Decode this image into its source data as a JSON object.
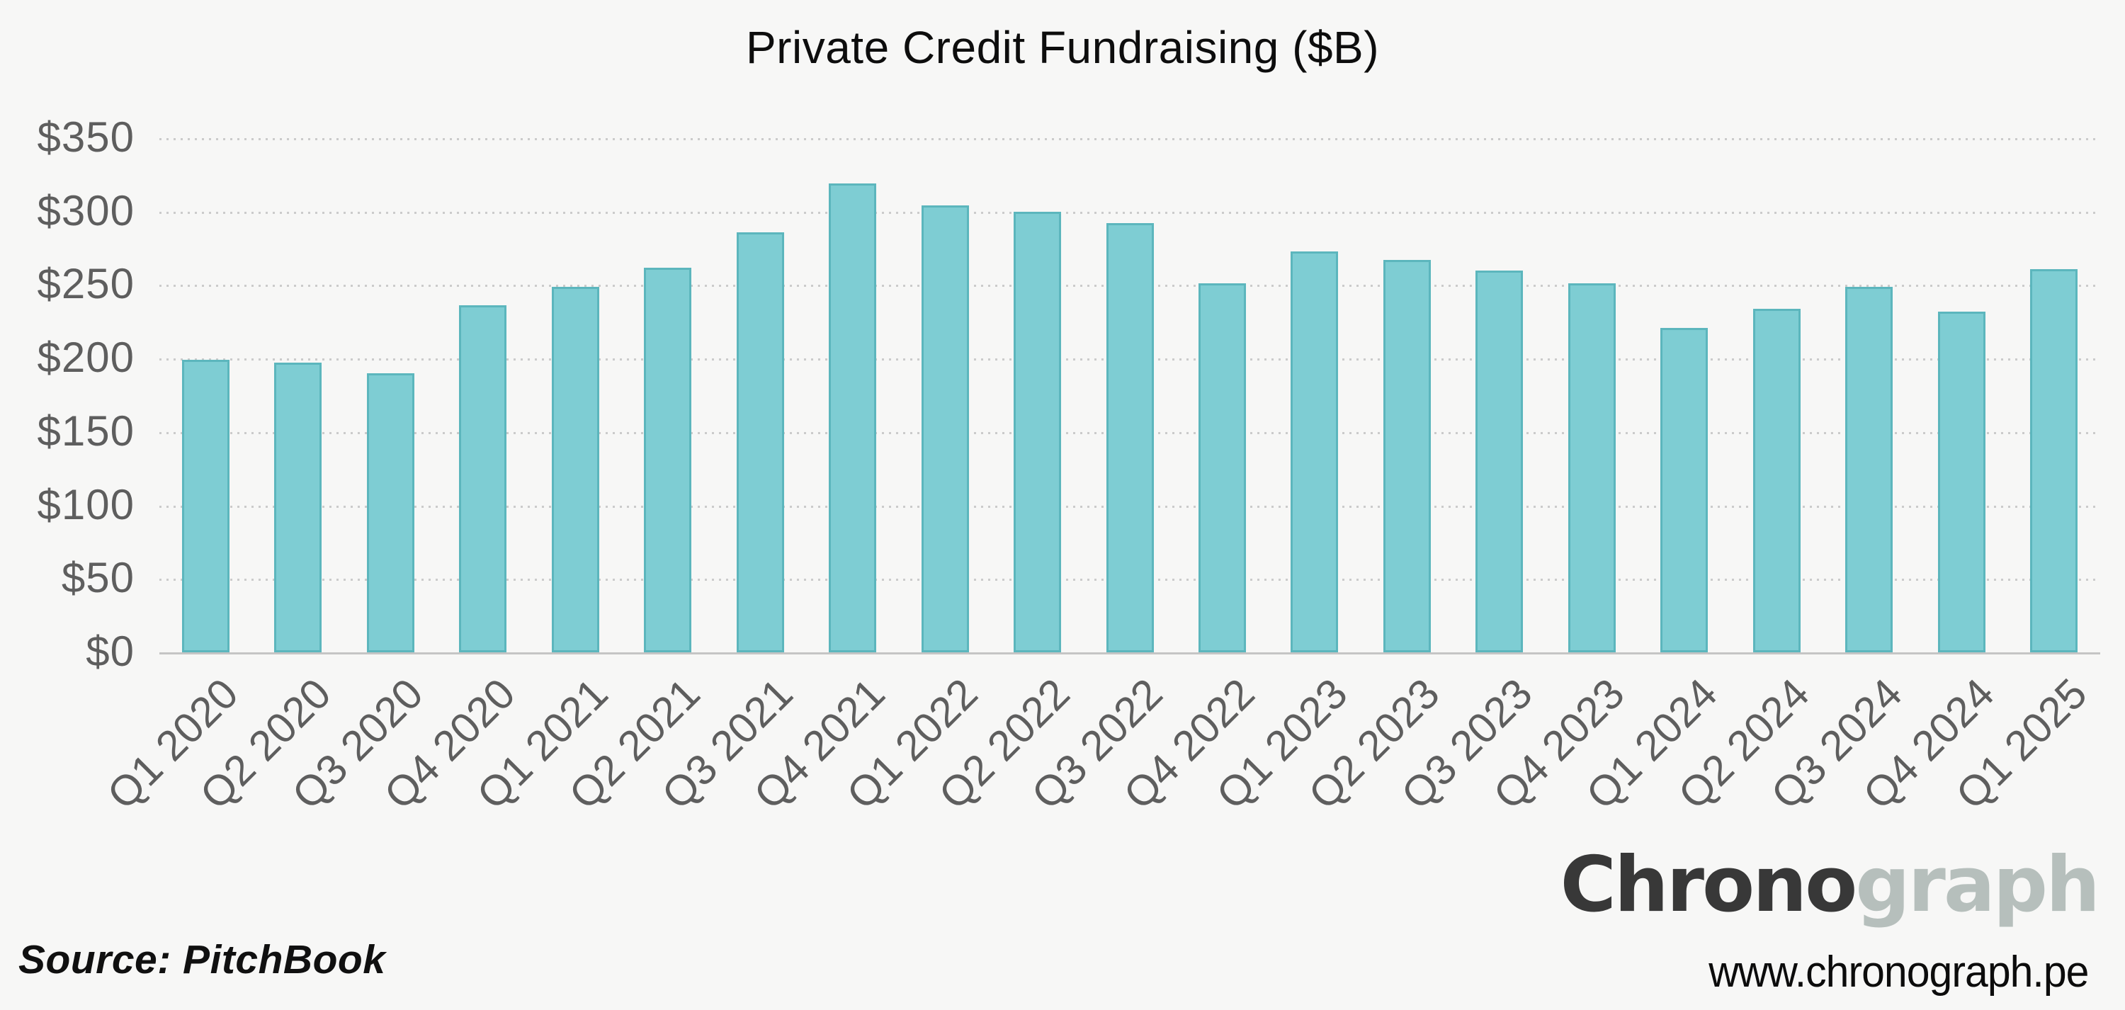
{
  "title": "Private Credit Fundraising ($B)",
  "source": "Source: PitchBook",
  "branding": {
    "logo_primary": "Chrono",
    "logo_secondary": "graph",
    "website": "www.chronograph.pe"
  },
  "colors": {
    "background": "#f7f7f6",
    "bar_fill": "#7ecdd3",
    "bar_border": "#5cb6bd",
    "gridline": "#cbcbcb",
    "axis_line": "#c5c5c5",
    "tick_label": "#5e5e5e",
    "title_color": "#0d0d0d",
    "logo_primary_color": "#383838",
    "logo_secondary_color": "#b6bfbc"
  },
  "chart_data": {
    "type": "bar",
    "title": "Private Credit Fundraising ($B)",
    "xlabel": "",
    "ylabel": "",
    "categories": [
      "Q1 2020",
      "Q2 2020",
      "Q3 2020",
      "Q4 2020",
      "Q1 2021",
      "Q2 2021",
      "Q3 2021",
      "Q4 2021",
      "Q1 2022",
      "Q2 2022",
      "Q3 2022",
      "Q4 2022",
      "Q1 2023",
      "Q2 2023",
      "Q3 2023",
      "Q4 2023",
      "Q1 2024",
      "Q2 2024",
      "Q3 2024",
      "Q4 2024",
      "Q1 2025"
    ],
    "values": [
      199,
      197,
      190,
      236,
      249,
      262,
      286,
      319,
      304,
      300,
      292,
      251,
      273,
      267,
      260,
      251,
      221,
      234,
      249,
      232,
      261
    ],
    "y_tick_labels": [
      "$0",
      "$50",
      "$100",
      "$150",
      "$200",
      "$250",
      "$300",
      "$350"
    ],
    "y_tick_values": [
      0,
      50,
      100,
      150,
      200,
      250,
      300,
      350
    ],
    "ylim": [
      0,
      350
    ],
    "grid": "horizontal-dotted",
    "legend": "none",
    "x_tick_rotation_deg": 45
  }
}
